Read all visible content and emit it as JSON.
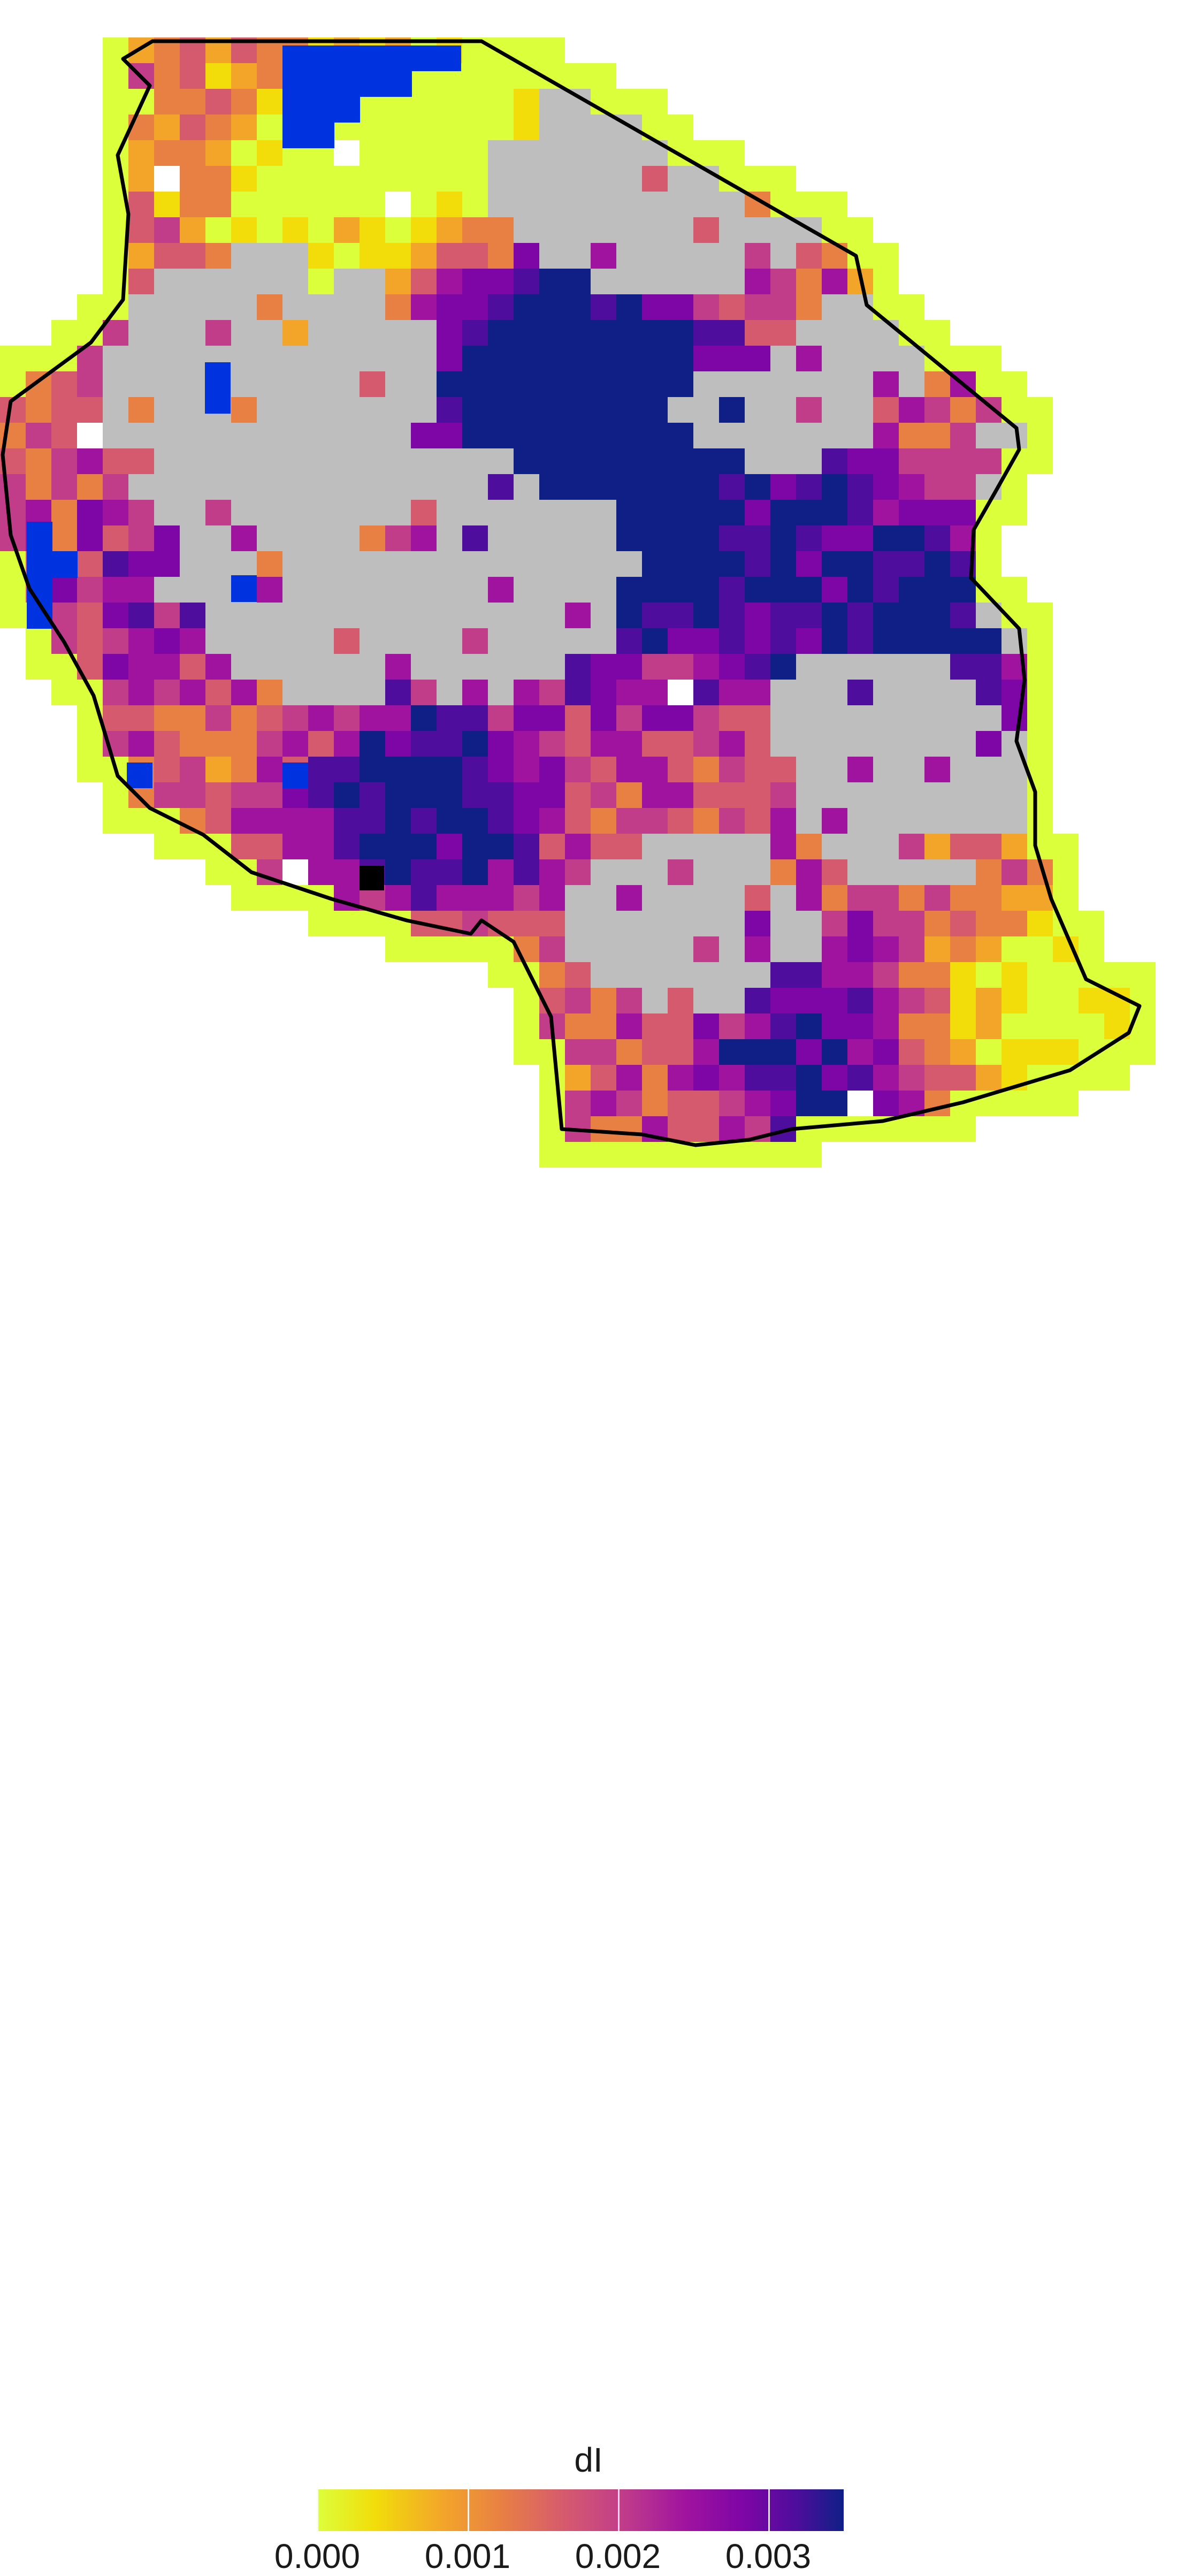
{
  "legend": {
    "title": "dI",
    "ticks": [
      {
        "value": 0.0,
        "label": "0.000"
      },
      {
        "value": 0.001,
        "label": "0.001"
      },
      {
        "value": 0.002,
        "label": "0.002"
      },
      {
        "value": 0.003,
        "label": "0.003"
      }
    ],
    "range": [
      0.0,
      0.0035
    ],
    "colormap": "plasma (reversed)",
    "colors": [
      "#dcff3c",
      "#f2dd0a",
      "#f3a52a",
      "#e88044",
      "#d65a6e",
      "#c13d8a",
      "#a0139f",
      "#7e05a6",
      "#4e0d9c",
      "#0f1f86"
    ]
  },
  "map": {
    "region": "Tanzania",
    "cell_colors": {
      "edge": "#dcff3c",
      "no_data": "#bebebe",
      "water": "#0033e0",
      "missing": "#ffffff",
      "extreme": "#000000"
    },
    "border_color": "#000000"
  }
}
